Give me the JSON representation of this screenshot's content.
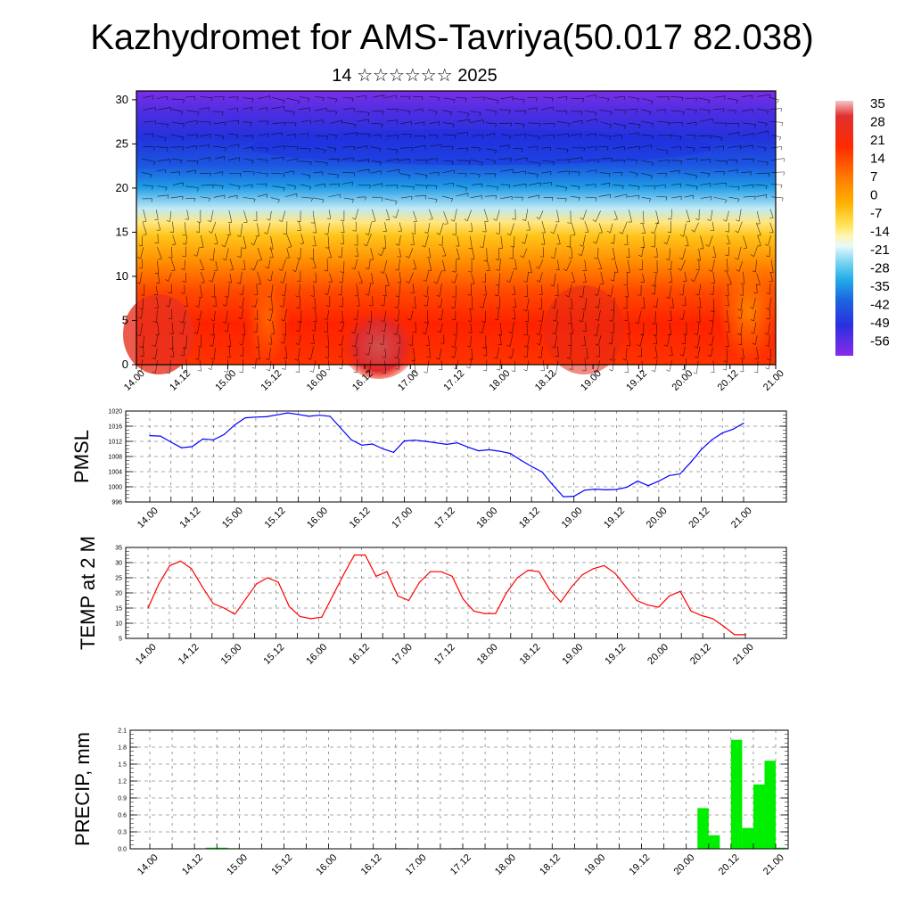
{
  "header": {
    "title": "Kazhydromet for AMS-Tavriya(50.017 82.038)",
    "subtitle": "14 ☆☆☆☆☆☆ 2025"
  },
  "chart_data": [
    {
      "type": "heatmap",
      "ylim": [
        0,
        31
      ],
      "y_ticks": [
        "0",
        "5",
        "10",
        "15",
        "20",
        "25",
        "30"
      ],
      "x_ticks": [
        "14.00",
        "14.12",
        "15.00",
        "15.12",
        "16.00",
        "16.12",
        "17.00",
        "17.12",
        "18.00",
        "18.12",
        "19.00",
        "19.12",
        "20.00",
        "20.12",
        "21.00"
      ],
      "colorbar": {
        "labels": [
          "35",
          "28",
          "21",
          "14",
          "7",
          "0",
          "-7",
          "-14",
          "-21",
          "-28",
          "-35",
          "-42",
          "-49",
          "-56"
        ],
        "colors": [
          "#f0c0c0",
          "#e03030",
          "#ff2a00",
          "#ff6a00",
          "#ff9a00",
          "#ffcc22",
          "#fff27a",
          "#fffbe0",
          "#9ee2f5",
          "#33b8ea",
          "#1e7fe0",
          "#2244dd",
          "#3a20e0",
          "#8a2be8"
        ]
      },
      "grid": false
    },
    {
      "type": "line",
      "ylabel": "PMSL",
      "ylim": [
        996,
        1020
      ],
      "y_ticks": [
        "1020",
        "1016",
        "1012",
        "1008",
        "1004",
        "1000",
        "996"
      ],
      "x_ticks": [
        "14.00",
        "14.12",
        "15.00",
        "15.12",
        "16.00",
        "16.12",
        "17.00",
        "17.12",
        "18.00",
        "18.12",
        "19.00",
        "19.12",
        "20.00",
        "20.12",
        "21.00"
      ],
      "series": [
        {
          "color": "#0000ff",
          "values": [
            1013.5,
            1013.4,
            1011.8,
            1010.3,
            1010.6,
            1012.6,
            1012.4,
            1013.8,
            1016.3,
            1018.2,
            1018.4,
            1018.5,
            1019.0,
            1019.5,
            1019.1,
            1018.6,
            1018.9,
            1018.6,
            1015.5,
            1012.4,
            1011.0,
            1011.3,
            1010.0,
            1009.1,
            1012.1,
            1012.3,
            1012.0,
            1011.6,
            1011.2,
            1011.6,
            1010.5,
            1009.5,
            1009.8,
            1009.4,
            1008.8,
            1007.0,
            1005.4,
            1003.9,
            1000.5,
            997.4,
            997.5,
            999.1,
            999.4,
            999.2,
            999.3,
            999.9,
            1001.5,
            1000.3,
            1001.5,
            1003.0,
            1003.4,
            1006.4,
            1009.8,
            1012.4,
            1014.2,
            1015.2,
            1016.8
          ]
        }
      ],
      "grid": true
    },
    {
      "type": "line",
      "ylabel": "TEMP at 2 M",
      "ylim": [
        5,
        35
      ],
      "y_ticks": [
        "35",
        "30",
        "25",
        "20",
        "15",
        "10",
        "5"
      ],
      "x_ticks": [
        "14.00",
        "14.12",
        "15.00",
        "15.12",
        "16.00",
        "16.12",
        "17.00",
        "17.12",
        "18.00",
        "18.12",
        "19.00",
        "19.12",
        "20.00",
        "20.12",
        "21.00"
      ],
      "series": [
        {
          "color": "#ff0000",
          "values": [
            15,
            23,
            29,
            30.5,
            28,
            22,
            16.5,
            15,
            13,
            18,
            23,
            25,
            23.5,
            15.5,
            12.2,
            11.5,
            12,
            19,
            26,
            32.5,
            32.5,
            25.5,
            27,
            19,
            17.5,
            23.5,
            27,
            27,
            25.5,
            18,
            14,
            13.2,
            13.2,
            20,
            25,
            27.5,
            27,
            21,
            17,
            22,
            26,
            28,
            29,
            26.5,
            22,
            17.5,
            16,
            15.3,
            19,
            20.5,
            14,
            12.5,
            11.5,
            9,
            6.2,
            6.2
          ]
        }
      ],
      "grid": true
    },
    {
      "type": "bar",
      "ylabel": "PRECIP, mm",
      "ylim": [
        0,
        2.1
      ],
      "y_ticks": [
        "2.1",
        "1.8",
        "1.5",
        "1.2",
        "0.9",
        "0.6",
        "0.3",
        "0.0"
      ],
      "x_ticks": [
        "14.00",
        "14.12",
        "15.00",
        "15.12",
        "16.00",
        "16.12",
        "17.00",
        "17.12",
        "18.00",
        "18.12",
        "19.00",
        "19.12",
        "20.00",
        "20.12",
        "21.00"
      ],
      "series": [
        {
          "color": "#00ee00",
          "values": [
            0,
            0,
            0,
            0,
            0,
            0.02,
            0.02,
            0.01,
            0,
            0,
            0,
            0,
            0,
            0,
            0,
            0,
            0,
            0,
            0,
            0,
            0,
            0,
            0.01,
            0,
            0,
            0,
            0,
            0.01,
            0,
            0,
            0,
            0,
            0,
            0,
            0,
            0,
            0,
            0,
            0,
            0,
            0,
            0,
            0,
            0,
            0,
            0,
            0,
            0,
            0,
            0.72,
            0.24,
            0,
            1.93,
            0.37,
            1.14,
            1.56,
            0.02
          ]
        }
      ],
      "grid": true
    }
  ]
}
